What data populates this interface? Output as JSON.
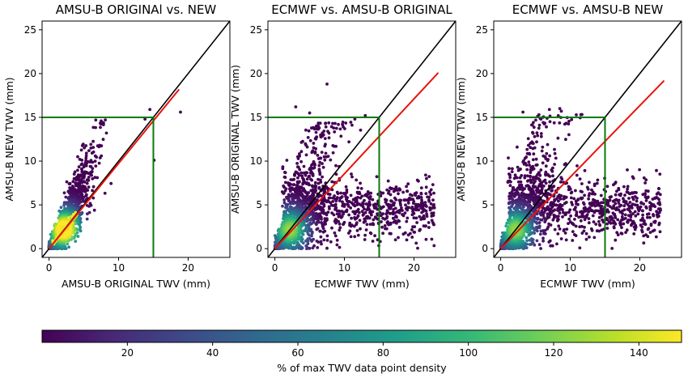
{
  "chart_data": [
    {
      "type": "scatter",
      "title": "AMSU-B ORIGINAl vs. NEW",
      "xlabel": "AMSU-B ORIGINAL TWV (mm)",
      "ylabel": "AMSU-B NEW TWV (mm)",
      "xlim": [
        -1,
        26
      ],
      "ylim": [
        -1,
        26
      ],
      "xticks": [
        0,
        10,
        20
      ],
      "yticks": [
        0,
        5,
        10,
        15,
        20,
        25
      ],
      "one_to_one_line": {
        "color": "#000000",
        "from": [
          -1,
          -1
        ],
        "to": [
          26,
          26
        ]
      },
      "fit_line": {
        "color": "#e8140c",
        "x": [
          0,
          18.7
        ],
        "y": [
          0,
          18.2
        ]
      },
      "threshold_line": {
        "color": "#0a7a0a",
        "value": 15
      },
      "cloud": {
        "x_range": [
          0,
          9
        ],
        "y_range": [
          0,
          15
        ],
        "core_slope": 1.0
      },
      "outliers": [
        [
          14.5,
          15.9
        ],
        [
          15.1,
          10.1
        ],
        [
          18.9,
          15.6
        ],
        [
          13.8,
          14.8
        ]
      ]
    },
    {
      "type": "scatter",
      "title": "ECMWF vs. AMSU-B ORIGINAL",
      "xlabel": "ECMWF TWV (mm)",
      "ylabel": "AMSU-B ORIGINAL TWV (mm)",
      "xlim": [
        -1,
        26
      ],
      "ylim": [
        -1,
        26
      ],
      "xticks": [
        0,
        10,
        20
      ],
      "yticks": [
        0,
        5,
        10,
        15,
        20,
        25
      ],
      "one_to_one_line": {
        "color": "#000000",
        "from": [
          -1,
          -1
        ],
        "to": [
          26,
          26
        ]
      },
      "fit_line": {
        "color": "#e8140c",
        "x": [
          0,
          23.5
        ],
        "y": [
          0,
          20.1
        ]
      },
      "threshold_line": {
        "color": "#0a7a0a",
        "value": 15
      },
      "cloud": {
        "x_range": [
          0,
          24
        ],
        "y_range": [
          0,
          15
        ],
        "core_slope": 1.0
      },
      "outliers": [
        [
          7.5,
          18.8
        ],
        [
          3.0,
          16.2
        ],
        [
          13.0,
          15.2
        ],
        [
          5.0,
          15.5
        ],
        [
          11.5,
          14.8
        ]
      ]
    },
    {
      "type": "scatter",
      "title": "ECMWF vs. AMSU-B NEW",
      "xlabel": "ECMWF TWV (mm)",
      "ylabel": "AMSU-B NEW TWV (mm)",
      "xlim": [
        -1,
        26
      ],
      "ylim": [
        -1,
        26
      ],
      "xticks": [
        0,
        10,
        20
      ],
      "yticks": [
        0,
        5,
        10,
        15,
        20,
        25
      ],
      "one_to_one_line": {
        "color": "#000000",
        "from": [
          -1,
          -1
        ],
        "to": [
          26,
          26
        ]
      },
      "fit_line": {
        "color": "#e8140c",
        "x": [
          0,
          23.5
        ],
        "y": [
          0,
          19.2
        ]
      },
      "threshold_line": {
        "color": "#0a7a0a",
        "value": 15
      },
      "cloud": {
        "x_range": [
          0,
          24
        ],
        "y_range": [
          0,
          16
        ],
        "core_slope": 1.0
      },
      "outliers": [
        [
          3.2,
          15.6
        ],
        [
          8.5,
          16.0
        ],
        [
          7.0,
          15.9
        ],
        [
          5.5,
          15.3
        ]
      ]
    }
  ],
  "colorbar": {
    "label": "% of max TWV data point density",
    "range": [
      0,
      150
    ],
    "ticks": [
      20,
      40,
      60,
      80,
      100,
      120,
      140
    ],
    "colormap": [
      "#440154",
      "#482878",
      "#3e4989",
      "#31688e",
      "#26828e",
      "#1f9e89",
      "#35b779",
      "#6ece58",
      "#b5de2b",
      "#fde725"
    ]
  }
}
